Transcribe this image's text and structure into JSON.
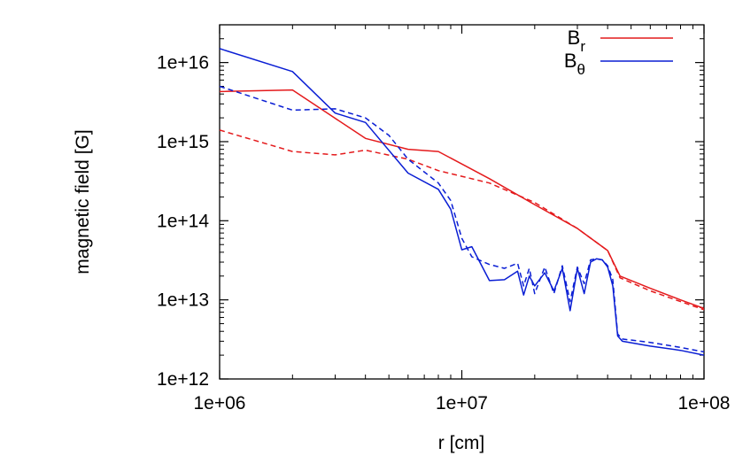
{
  "chart_data": {
    "type": "line",
    "title": "",
    "xlabel": "r [cm]",
    "ylabel": "magnetic field [G]",
    "xscale": "log",
    "yscale": "log",
    "xlim": [
      1000000.0,
      100000000.0
    ],
    "ylim": [
      1000000000000.0,
      3e+16
    ],
    "grid": false,
    "legend_position": "top-right",
    "x_ticks": [
      {
        "value": 1000000.0,
        "label": "1e+06"
      },
      {
        "value": 10000000.0,
        "label": "1e+07"
      },
      {
        "value": 100000000.0,
        "label": "1e+08"
      }
    ],
    "y_ticks": [
      {
        "value": 1000000000000.0,
        "label": "1e+12"
      },
      {
        "value": 10000000000000.0,
        "label": "1e+13"
      },
      {
        "value": 100000000000000.0,
        "label": "1e+14"
      },
      {
        "value": 1000000000000000.0,
        "label": "1e+15"
      },
      {
        "value": 1e+16,
        "label": "1e+16"
      }
    ],
    "legend": [
      {
        "base": "B",
        "sub": "r",
        "color": "#e41a1c"
      },
      {
        "base": "B",
        "sub": "θ",
        "color": "#0a1ed4"
      }
    ],
    "series": [
      {
        "name": "B_r",
        "color": "#e41a1c",
        "dash": "solid",
        "x": [
          1000000.0,
          2000000.0,
          4000000.0,
          6000000.0,
          8000000.0,
          13000000.0,
          20000000.0,
          30000000.0,
          40000000.0,
          45000000.0,
          60000000.0,
          80000000.0,
          100000000.0
        ],
        "y": [
          4300000000000000.0,
          4500000000000000.0,
          1100000000000000.0,
          800000000000000.0,
          750000000000000.0,
          340000000000000.0,
          160000000000000.0,
          80000000000000.0,
          42000000000000.0,
          20000000000000.0,
          14000000000000.0,
          10000000000000.0,
          7800000000000.0
        ]
      },
      {
        "name": "B_r (dashed)",
        "color": "#e41a1c",
        "dash": "dashed",
        "x": [
          1000000.0,
          2000000.0,
          3000000.0,
          4000000.0,
          6000000.0,
          8000000.0,
          13000000.0,
          20000000.0,
          30000000.0,
          40000000.0,
          45000000.0,
          60000000.0,
          80000000.0,
          100000000.0
        ],
        "y": [
          1400000000000000.0,
          750000000000000.0,
          680000000000000.0,
          780000000000000.0,
          600000000000000.0,
          430000000000000.0,
          300000000000000.0,
          170000000000000.0,
          80000000000000.0,
          42000000000000.0,
          19000000000000.0,
          13000000000000.0,
          9500000000000.0,
          7500000000000.0
        ]
      },
      {
        "name": "B_θ",
        "color": "#0a1ed4",
        "dash": "solid",
        "x": [
          1000000.0,
          2000000.0,
          3000000.0,
          4000000.0,
          6000000.0,
          8000000.0,
          9000000.0,
          10000000.0,
          11000000.0,
          13000000.0,
          15000000.0,
          17000000.0,
          18000000.0,
          19000000.0,
          20000000.0,
          22000000.0,
          24000000.0,
          26000000.0,
          28000000.0,
          30000000.0,
          32000000.0,
          34000000.0,
          36000000.0,
          38000000.0,
          40000000.0,
          42000000.0,
          44000000.0,
          46000000.0,
          60000000.0,
          80000000.0,
          100000000.0
        ],
        "y": [
          1.5e+16,
          7700000000000000.0,
          2300000000000000.0,
          1750000000000000.0,
          400000000000000.0,
          250000000000000.0,
          140000000000000.0,
          43000000000000.0,
          47000000000000.0,
          17500000000000.0,
          18000000000000.0,
          23000000000000.0,
          11500000000000.0,
          20000000000000.0,
          15000000000000.0,
          22000000000000.0,
          13000000000000.0,
          25000000000000.0,
          7300000000000.0,
          25000000000000.0,
          12000000000000.0,
          30000000000000.0,
          33000000000000.0,
          32000000000000.0,
          26000000000000.0,
          15000000000000.0,
          3500000000000.0,
          3000000000000.0,
          2600000000000.0,
          2300000000000.0,
          2000000000000.0
        ]
      },
      {
        "name": "B_θ (dashed)",
        "color": "#0a1ed4",
        "dash": "dashed",
        "x": [
          1000000.0,
          2000000.0,
          3000000.0,
          4000000.0,
          5000000.0,
          6000000.0,
          8000000.0,
          9000000.0,
          10000000.0,
          11000000.0,
          13000000.0,
          15000000.0,
          17000000.0,
          18000000.0,
          19000000.0,
          20000000.0,
          22000000.0,
          24000000.0,
          26000000.0,
          28000000.0,
          30000000.0,
          32000000.0,
          34000000.0,
          36000000.0,
          38000000.0,
          40000000.0,
          42000000.0,
          44000000.0,
          46000000.0,
          60000000.0,
          80000000.0,
          100000000.0
        ],
        "y": [
          5000000000000000.0,
          2500000000000000.0,
          2600000000000000.0,
          2000000000000000.0,
          1200000000000000.0,
          600000000000000.0,
          300000000000000.0,
          180000000000000.0,
          60000000000000.0,
          35000000000000.0,
          28000000000000.0,
          25000000000000.0,
          29000000000000.0,
          15000000000000.0,
          25000000000000.0,
          12000000000000.0,
          26000000000000.0,
          12000000000000.0,
          27000000000000.0,
          9500000000000.0,
          26000000000000.0,
          16000000000000.0,
          32000000000000.0,
          33000000000000.0,
          32000000000000.0,
          27000000000000.0,
          18000000000000.0,
          3700000000000.0,
          3200000000000.0,
          2900000000000.0,
          2500000000000.0,
          2200000000000.0
        ]
      }
    ]
  }
}
